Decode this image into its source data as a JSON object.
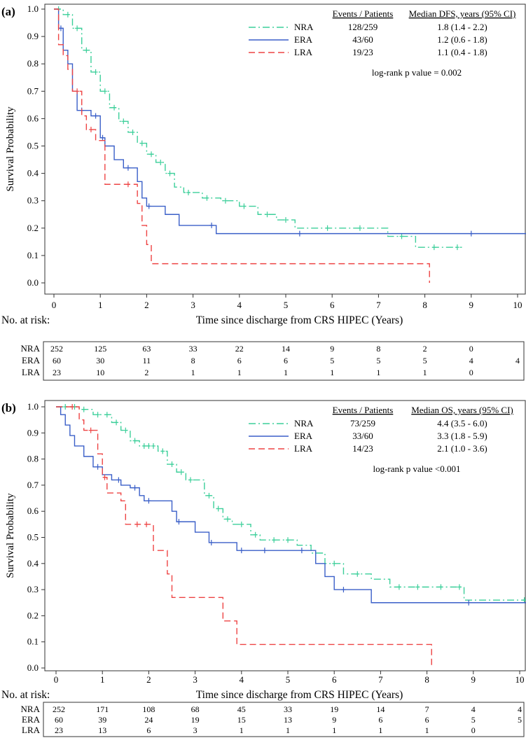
{
  "chart_data": [
    {
      "type": "line",
      "subtype": "kaplan-meier",
      "panel_label": "(a)",
      "xlabel": "Time since discharge from CRS HIPEC (Years)",
      "ylabel": "Survival Probability",
      "xlim": [
        0,
        10.2
      ],
      "ylim": [
        0,
        1.0
      ],
      "xticks": [
        "0",
        "1",
        "2",
        "3",
        "4",
        "5",
        "6",
        "7",
        "8",
        "9",
        "10"
      ],
      "yticks": [
        "0.0",
        "0.1",
        "0.2",
        "0.3",
        "0.4",
        "0.5",
        "0.6",
        "0.7",
        "0.8",
        "0.9",
        "1.0"
      ],
      "legend": {
        "position": "top-right",
        "header_events": "Events / Patients",
        "header_median": "Median DFS, years (95% CI)",
        "entries": [
          {
            "name": "NRA",
            "events": "128/259",
            "median": "1.8 (1.4 - 2.2)"
          },
          {
            "name": "ERA",
            "events": "43/60",
            "median": "1.2 (0.6 - 1.8)"
          },
          {
            "name": "LRA",
            "events": "19/23",
            "median": "1.1 (0.4 - 1.8)"
          }
        ],
        "logrank": "log-rank p value = 0.002"
      },
      "series": [
        {
          "name": "NRA",
          "color": "#3ccf9a",
          "dash": "dashdot",
          "steps": [
            [
              0,
              1
            ],
            [
              0.2,
              0.98
            ],
            [
              0.4,
              0.93
            ],
            [
              0.6,
              0.85
            ],
            [
              0.8,
              0.77
            ],
            [
              1.0,
              0.7
            ],
            [
              1.2,
              0.64
            ],
            [
              1.4,
              0.59
            ],
            [
              1.6,
              0.55
            ],
            [
              1.8,
              0.51
            ],
            [
              2.0,
              0.47
            ],
            [
              2.2,
              0.44
            ],
            [
              2.4,
              0.4
            ],
            [
              2.6,
              0.35
            ],
            [
              2.8,
              0.33
            ],
            [
              3.2,
              0.31
            ],
            [
              3.6,
              0.3
            ],
            [
              4.0,
              0.28
            ],
            [
              4.4,
              0.25
            ],
            [
              4.8,
              0.23
            ],
            [
              5.2,
              0.2
            ],
            [
              7.2,
              0.17
            ],
            [
              7.8,
              0.13
            ],
            [
              8.8,
              0.13
            ]
          ],
          "censored": [
            0.1,
            0.3,
            0.5,
            0.7,
            0.9,
            1.1,
            1.3,
            1.5,
            1.7,
            1.9,
            2.1,
            2.3,
            2.5,
            2.9,
            3.3,
            3.7,
            4.1,
            4.6,
            5.0,
            5.9,
            6.6,
            7.5,
            8.2,
            8.7
          ]
        },
        {
          "name": "ERA",
          "color": "#3a5fc8",
          "dash": "solid",
          "steps": [
            [
              0,
              1
            ],
            [
              0.1,
              0.93
            ],
            [
              0.2,
              0.85
            ],
            [
              0.3,
              0.8
            ],
            [
              0.4,
              0.7
            ],
            [
              0.5,
              0.63
            ],
            [
              0.8,
              0.61
            ],
            [
              1.0,
              0.53
            ],
            [
              1.1,
              0.5
            ],
            [
              1.3,
              0.45
            ],
            [
              1.5,
              0.42
            ],
            [
              1.8,
              0.37
            ],
            [
              1.9,
              0.31
            ],
            [
              2.0,
              0.28
            ],
            [
              2.4,
              0.25
            ],
            [
              2.7,
              0.21
            ],
            [
              3.5,
              0.18
            ],
            [
              10.2,
              0.18
            ]
          ],
          "censored": [
            0.15,
            0.6,
            0.9,
            1.05,
            1.6,
            2.05,
            3.4,
            5.3,
            9.0
          ]
        },
        {
          "name": "LRA",
          "color": "#ee4444",
          "dash": "dashed",
          "steps": [
            [
              0,
              1
            ],
            [
              0.1,
              0.87
            ],
            [
              0.2,
              0.83
            ],
            [
              0.3,
              0.78
            ],
            [
              0.4,
              0.7
            ],
            [
              0.6,
              0.61
            ],
            [
              0.7,
              0.56
            ],
            [
              0.9,
              0.52
            ],
            [
              1.1,
              0.36
            ],
            [
              1.8,
              0.29
            ],
            [
              1.9,
              0.21
            ],
            [
              2.0,
              0.14
            ],
            [
              2.1,
              0.07
            ],
            [
              8.1,
              0.07
            ],
            [
              8.1,
              0.0
            ]
          ],
          "censored": [
            0.5,
            0.8,
            1.6
          ]
        }
      ],
      "risk_table": {
        "title": "No. at risk:",
        "rows": [
          {
            "name": "NRA",
            "values": [
              "252",
              "125",
              "63",
              "33",
              "22",
              "14",
              "9",
              "8",
              "2",
              "0",
              ""
            ]
          },
          {
            "name": "ERA",
            "values": [
              "60",
              "30",
              "11",
              "8",
              "6",
              "6",
              "5",
              "5",
              "5",
              "4",
              "4"
            ]
          },
          {
            "name": "LRA",
            "values": [
              "23",
              "10",
              "2",
              "1",
              "1",
              "1",
              "1",
              "1",
              "1",
              "0",
              ""
            ]
          }
        ]
      }
    },
    {
      "type": "line",
      "subtype": "kaplan-meier",
      "panel_label": "(b)",
      "xlabel": "Time since discharge from CRS HIPEC (Years)",
      "ylabel": "Survival Probability",
      "xlim": [
        0,
        10.2
      ],
      "ylim": [
        0,
        1.0
      ],
      "xticks": [
        "0",
        "1",
        "2",
        "3",
        "4",
        "5",
        "6",
        "7",
        "8",
        "9",
        "10"
      ],
      "yticks": [
        "0.0",
        "0.1",
        "0.2",
        "0.3",
        "0.4",
        "0.5",
        "0.6",
        "0.7",
        "0.8",
        "0.9",
        "1.0"
      ],
      "legend": {
        "position": "top-right",
        "header_events": "Events / Patients",
        "header_median": "Median OS, years (95% CI)",
        "entries": [
          {
            "name": "NRA",
            "events": "73/259",
            "median": "4.4 (3.5 - 6.0)"
          },
          {
            "name": "ERA",
            "events": "33/60",
            "median": "3.3 (1.8 - 5.9)"
          },
          {
            "name": "LRA",
            "events": "14/23",
            "median": "2.1 (1.0 - 3.6)"
          }
        ],
        "logrank": "log-rank p value <0.001"
      },
      "series": [
        {
          "name": "NRA",
          "color": "#3ccf9a",
          "dash": "dashdot",
          "steps": [
            [
              0,
              1
            ],
            [
              0.5,
              0.99
            ],
            [
              0.8,
              0.97
            ],
            [
              1.2,
              0.94
            ],
            [
              1.4,
              0.91
            ],
            [
              1.6,
              0.87
            ],
            [
              1.8,
              0.85
            ],
            [
              2.2,
              0.83
            ],
            [
              2.4,
              0.78
            ],
            [
              2.6,
              0.75
            ],
            [
              2.8,
              0.72
            ],
            [
              3.2,
              0.66
            ],
            [
              3.4,
              0.61
            ],
            [
              3.6,
              0.57
            ],
            [
              3.8,
              0.55
            ],
            [
              4.2,
              0.51
            ],
            [
              4.4,
              0.49
            ],
            [
              5.2,
              0.47
            ],
            [
              5.5,
              0.44
            ],
            [
              5.8,
              0.4
            ],
            [
              6.2,
              0.36
            ],
            [
              6.8,
              0.34
            ],
            [
              7.2,
              0.31
            ],
            [
              8.8,
              0.26
            ],
            [
              10.2,
              0.25
            ]
          ],
          "censored": [
            0.2,
            0.4,
            0.6,
            0.9,
            1.1,
            1.3,
            1.5,
            1.7,
            1.9,
            2.0,
            2.1,
            2.3,
            2.5,
            2.7,
            2.9,
            3.3,
            3.5,
            3.7,
            4.0,
            4.3,
            4.7,
            5.0,
            6.0,
            6.5,
            7.4,
            7.8,
            8.3,
            8.7,
            10.1
          ]
        },
        {
          "name": "ERA",
          "color": "#3a5fc8",
          "dash": "solid",
          "steps": [
            [
              0,
              1
            ],
            [
              0.1,
              0.97
            ],
            [
              0.2,
              0.93
            ],
            [
              0.3,
              0.89
            ],
            [
              0.4,
              0.85
            ],
            [
              0.6,
              0.81
            ],
            [
              0.8,
              0.77
            ],
            [
              1.0,
              0.74
            ],
            [
              1.2,
              0.72
            ],
            [
              1.4,
              0.7
            ],
            [
              1.6,
              0.69
            ],
            [
              1.8,
              0.66
            ],
            [
              1.9,
              0.64
            ],
            [
              2.5,
              0.6
            ],
            [
              2.6,
              0.56
            ],
            [
              3.0,
              0.52
            ],
            [
              3.3,
              0.48
            ],
            [
              3.9,
              0.45
            ],
            [
              5.6,
              0.4
            ],
            [
              5.8,
              0.35
            ],
            [
              6.0,
              0.3
            ],
            [
              6.8,
              0.25
            ],
            [
              10.2,
              0.25
            ]
          ],
          "censored": [
            0.9,
            1.35,
            1.7,
            2.0,
            2.65,
            3.35,
            4.0,
            4.5,
            5.3,
            6.2,
            8.9
          ]
        },
        {
          "name": "LRA",
          "color": "#ee4444",
          "dash": "dashed",
          "steps": [
            [
              0,
              1
            ],
            [
              0.5,
              0.95
            ],
            [
              0.6,
              0.91
            ],
            [
              0.9,
              0.82
            ],
            [
              1.0,
              0.73
            ],
            [
              1.1,
              0.67
            ],
            [
              1.4,
              0.64
            ],
            [
              1.5,
              0.55
            ],
            [
              2.1,
              0.45
            ],
            [
              2.4,
              0.36
            ],
            [
              2.5,
              0.27
            ],
            [
              3.6,
              0.18
            ],
            [
              3.9,
              0.09
            ],
            [
              8.1,
              0.09
            ],
            [
              8.1,
              0.0
            ]
          ],
          "censored": [
            0.35,
            0.75,
            1.05,
            1.75,
            1.95
          ]
        }
      ],
      "risk_table": {
        "title": "No. at risk:",
        "rows": [
          {
            "name": "NRA",
            "values": [
              "252",
              "171",
              "108",
              "68",
              "45",
              "33",
              "19",
              "14",
              "7",
              "4",
              "4"
            ]
          },
          {
            "name": "ERA",
            "values": [
              "60",
              "39",
              "24",
              "19",
              "15",
              "13",
              "9",
              "6",
              "6",
              "5",
              "5"
            ]
          },
          {
            "name": "LRA",
            "values": [
              "23",
              "13",
              "6",
              "3",
              "1",
              "1",
              "1",
              "1",
              "1",
              "0",
              ""
            ]
          }
        ]
      }
    }
  ]
}
